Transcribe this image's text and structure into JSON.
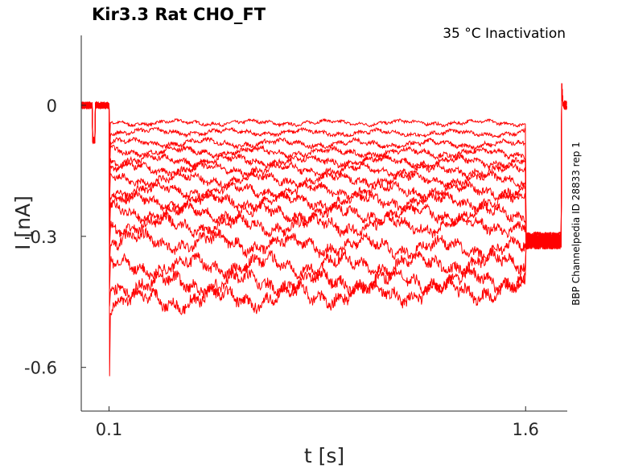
{
  "chart_data": {
    "type": "line",
    "title": "Kir3.3  Rat  CHO_FT",
    "subtitle": "35 °C  Inactivation",
    "side_label": "BBP Channelpedia ID 28833 rep 1",
    "xlabel": "t [s]",
    "ylabel": "I [nA]",
    "x_ticks": [
      {
        "value": 0.1,
        "label": "0.1"
      },
      {
        "value": 1.6,
        "label": "1.6"
      }
    ],
    "y_ticks": [
      {
        "value": 0,
        "label": "0"
      },
      {
        "value": -0.3,
        "label": "-0.3"
      },
      {
        "value": -0.6,
        "label": "-0.6"
      }
    ],
    "xlim": [
      0.0,
      1.75
    ],
    "ylim": [
      -0.7,
      0.16
    ],
    "grid": false,
    "color": "#ff0000",
    "step_start": 0.1,
    "step_end": 1.6,
    "baseline": 0.0,
    "holding_current": -0.31,
    "initial_peak": -0.62,
    "series": [
      {
        "values": [
          -0.04,
          -0.04
        ]
      },
      {
        "values": [
          -0.06,
          -0.065
        ]
      },
      {
        "values": [
          -0.085,
          -0.09
        ]
      },
      {
        "values": [
          -0.105,
          -0.11
        ]
      },
      {
        "values": [
          -0.125,
          -0.13
        ]
      },
      {
        "values": [
          -0.145,
          -0.15
        ]
      },
      {
        "values": [
          -0.17,
          -0.17
        ]
      },
      {
        "values": [
          -0.195,
          -0.195
        ]
      },
      {
        "values": [
          -0.22,
          -0.22
        ]
      },
      {
        "values": [
          -0.245,
          -0.25
        ]
      },
      {
        "values": [
          -0.275,
          -0.275
        ]
      },
      {
        "values": [
          -0.31,
          -0.33
        ]
      },
      {
        "values": [
          -0.37,
          -0.36
        ]
      },
      {
        "values": [
          -0.41,
          -0.4
        ]
      },
      {
        "values": [
          -0.45,
          -0.42
        ]
      }
    ]
  }
}
